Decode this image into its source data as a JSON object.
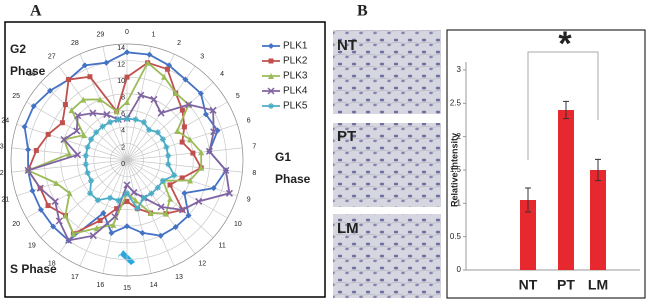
{
  "panels": {
    "a_label": "A",
    "b_label": "B",
    "image_labels": [
      "NT",
      "PT",
      "LM"
    ]
  },
  "chart_data": [
    {
      "type": "radar",
      "categories": [
        0,
        1,
        2,
        3,
        4,
        5,
        6,
        7,
        8,
        9,
        10,
        11,
        12,
        13,
        14,
        15,
        16,
        17,
        18,
        19,
        20,
        21,
        22,
        23,
        24,
        25,
        26,
        27,
        28,
        29
      ],
      "ylim": [
        0,
        14
      ],
      "yticks": [
        0,
        2,
        4,
        6,
        8,
        10,
        12,
        14
      ],
      "grid": true,
      "legend": "right",
      "annotations": [
        [
          "G2",
          "Phase"
        ],
        [
          "G1",
          "Phase"
        ],
        [
          "S Phase"
        ]
      ],
      "series": [
        {
          "name": "PLK1",
          "color": "#4472c4",
          "marker": "diamond",
          "values": [
            13,
            13,
            12.5,
            12,
            12,
            11,
            11.5,
            10,
            12,
            11,
            8,
            10,
            10,
            10,
            9,
            8,
            9,
            7,
            12,
            12,
            12,
            12,
            12,
            12,
            13,
            13,
            12.5,
            12,
            12.5,
            12
          ]
        },
        {
          "name": "PLK2",
          "color": "#c0504d",
          "marker": "square",
          "values": [
            10,
            12,
            12,
            10,
            9,
            8,
            7,
            8,
            9,
            7,
            6,
            9,
            8,
            7,
            6,
            5,
            6,
            8,
            11,
            10,
            11,
            11,
            12,
            11,
            10,
            9,
            10,
            12,
            11,
            6
          ]
        },
        {
          "name": "PLK3",
          "color": "#9bbb59",
          "marker": "triangle",
          "values": [
            7,
            12,
            11,
            10,
            10,
            7,
            8,
            9,
            9,
            8,
            5,
            7,
            8,
            7,
            5,
            4,
            8,
            9,
            11,
            10,
            8,
            9,
            12,
            7,
            8,
            6,
            9,
            9,
            8,
            6
          ]
        },
        {
          "name": "PLK4",
          "color": "#8064a2",
          "marker": "cross",
          "values": [
            5,
            8,
            8,
            7,
            10,
            12,
            11,
            10,
            12,
            13,
            10,
            9,
            7,
            5,
            4,
            3,
            7,
            10,
            12,
            11,
            10,
            11,
            12,
            6,
            8,
            7,
            8,
            7,
            6,
            5
          ]
        },
        {
          "name": "PLK5",
          "color": "#4bacc6",
          "marker": "star",
          "values": [
            5,
            5,
            5,
            4.5,
            5,
            5,
            5,
            5,
            5,
            6,
            5,
            5,
            5,
            5,
            6,
            4,
            5,
            5,
            6,
            6,
            5,
            5,
            5,
            5,
            5,
            5,
            5,
            5,
            5,
            5
          ]
        }
      ]
    },
    {
      "type": "bar",
      "categories": [
        "NT",
        "PT",
        "LM"
      ],
      "values": [
        1.05,
        2.4,
        1.5
      ],
      "errors": [
        0.18,
        0.13,
        0.16
      ],
      "color": "#e8282f",
      "ylim": [
        0,
        3
      ],
      "yticks": [
        0,
        0.5,
        1,
        1.5,
        2,
        2.5,
        3
      ],
      "grid": false,
      "ylabel": "Relative intensity",
      "annotation": "*"
    }
  ]
}
